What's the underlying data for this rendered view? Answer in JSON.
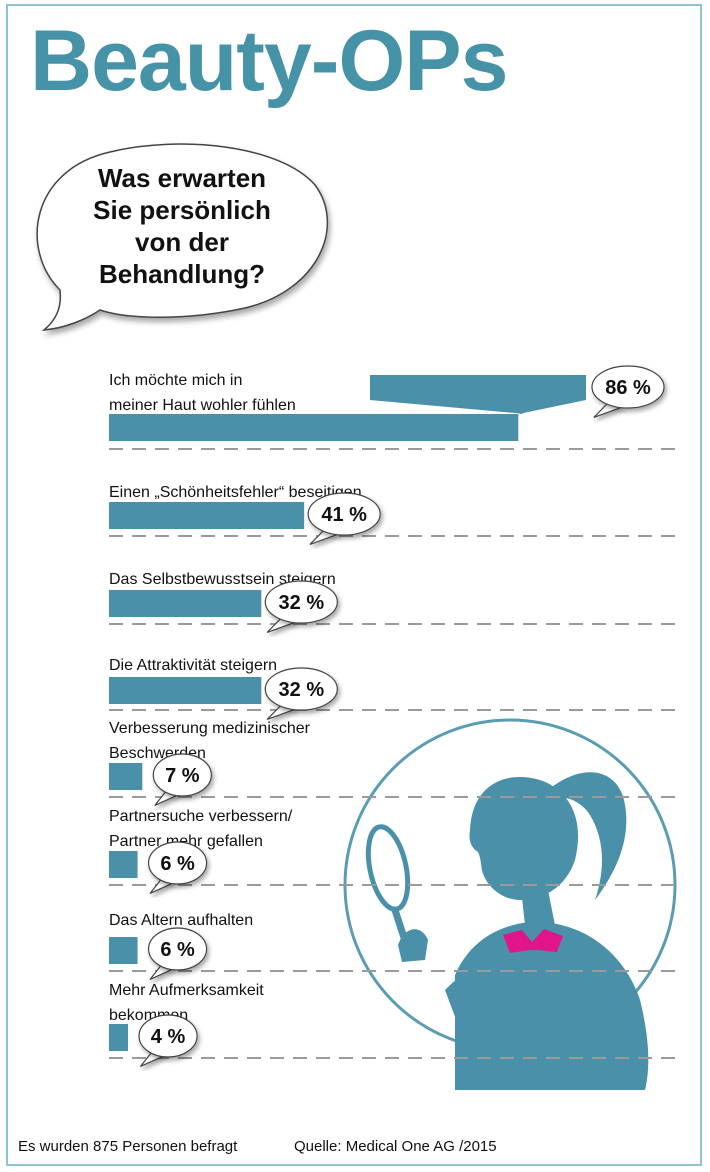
{
  "header": {
    "title": "Beauty-OPs",
    "question_lines": [
      "Was erwarten",
      "Sie persönlich",
      "von der",
      "Behandlung?"
    ]
  },
  "colors": {
    "accent": "#4a90a8",
    "title": "#4693a8",
    "highlight": "#e0158a"
  },
  "chart_data": {
    "type": "bar",
    "orientation": "horizontal",
    "unit": "%",
    "xlim": [
      0,
      100
    ],
    "categories": [
      [
        "Ich möchte mich in",
        "meiner Haut wohler fühlen"
      ],
      [
        "Einen „Schönheitsfehler“ beseitigen"
      ],
      [
        "Das Selbstbewusstsein steigern"
      ],
      [
        "Die Attraktivität steigern"
      ],
      [
        "Verbesserung medizinischer",
        "Beschwerden"
      ],
      [
        "Partnersuche verbessern/",
        "Partner mehr gefallen"
      ],
      [
        "Das Altern aufhalten"
      ],
      [
        "Mehr Aufmerksamkeit",
        "bekommen"
      ]
    ],
    "values": [
      86,
      41,
      32,
      32,
      7,
      6,
      6,
      4
    ],
    "value_labels": [
      "86 %",
      "41 %",
      "32 %",
      "32 %",
      "7 %",
      "6 %",
      "6 %",
      "4 %"
    ]
  },
  "footer": {
    "note": "Es wurden 875 Personen befragt",
    "source": "Quelle: Medical One AG /2015"
  }
}
